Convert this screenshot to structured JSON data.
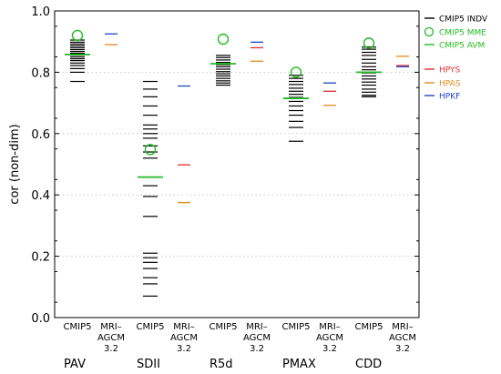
{
  "chart_data": {
    "type": "scatter",
    "ylabel": "cor (non-dim)",
    "ylim": [
      0.0,
      1.0
    ],
    "yticks": [
      "0.0",
      "0.2",
      "0.4",
      "0.6",
      "0.8",
      "1.0"
    ],
    "ytick_values": [
      0.0,
      0.2,
      0.4,
      0.6,
      0.8,
      1.0
    ],
    "grid": "dotted horizontal",
    "legend": "top-right",
    "groups": [
      {
        "name": "PAV",
        "cmip5_label": "CMIP5",
        "mri_label": [
          "MRI–",
          "AGCM",
          "3.2"
        ],
        "cmip5_indv": [
          0.905,
          0.898,
          0.892,
          0.886,
          0.88,
          0.874,
          0.868,
          0.862,
          0.856,
          0.85,
          0.844,
          0.838,
          0.83,
          0.822,
          0.812,
          0.8,
          0.77
        ],
        "mme": 0.92,
        "avm": 0.858,
        "hpys": null,
        "hpas": 0.89,
        "hpkf": 0.925
      },
      {
        "name": "SDII",
        "cmip5_label": "CMIP5",
        "mri_label": [
          "MRI–",
          "AGCM",
          "3.2"
        ],
        "cmip5_indv": [
          0.77,
          0.745,
          0.72,
          0.69,
          0.66,
          0.628,
          0.615,
          0.6,
          0.585,
          0.56,
          0.54,
          0.52,
          0.43,
          0.395,
          0.33,
          0.21,
          0.195,
          0.18,
          0.16,
          0.13,
          0.11,
          0.07
        ],
        "mme": 0.548,
        "avm": 0.458,
        "hpys": 0.498,
        "hpas": 0.375,
        "hpkf": 0.755
      },
      {
        "name": "R5d",
        "cmip5_label": "CMIP5",
        "mri_label": [
          "MRI–",
          "AGCM",
          "3.2"
        ],
        "cmip5_indv": [
          0.855,
          0.848,
          0.84,
          0.832,
          0.825,
          0.818,
          0.81,
          0.802,
          0.795,
          0.788,
          0.78,
          0.772,
          0.765,
          0.758
        ],
        "mme": 0.908,
        "avm": 0.828,
        "hpys": 0.88,
        "hpas": 0.836,
        "hpkf": 0.898
      },
      {
        "name": "PMAX",
        "cmip5_label": "CMIP5",
        "mri_label": [
          "MRI–",
          "AGCM",
          "3.2"
        ],
        "cmip5_indv": [
          0.79,
          0.78,
          0.77,
          0.76,
          0.748,
          0.738,
          0.728,
          0.718,
          0.705,
          0.69,
          0.675,
          0.66,
          0.64,
          0.62,
          0.575
        ],
        "mme": 0.8,
        "avm": 0.715,
        "hpys": 0.738,
        "hpas": 0.692,
        "hpkf": 0.765
      },
      {
        "name": "CDD",
        "cmip5_label": "CMIP5",
        "mri_label": [
          "MRI–",
          "AGCM",
          "3.2"
        ],
        "cmip5_indv": [
          0.882,
          0.875,
          0.865,
          0.855,
          0.842,
          0.83,
          0.818,
          0.808,
          0.798,
          0.788,
          0.778,
          0.768,
          0.758,
          0.745,
          0.735,
          0.725,
          0.72
        ],
        "mme": 0.895,
        "avm": 0.8,
        "hpys": 0.822,
        "hpas": 0.852,
        "hpkf": 0.818
      }
    ],
    "legend_entries": [
      {
        "key": "indv",
        "label": "CMIP5 INDV",
        "color": "#000000",
        "marker": "line"
      },
      {
        "key": "mme",
        "label": "CMIP5 MME",
        "color": "#22bb22",
        "marker": "circle"
      },
      {
        "key": "avm",
        "label": "CMIP5 AVM",
        "color": "#22bb22",
        "marker": "line"
      },
      {
        "key": "hpys",
        "label": "HPYS",
        "color": "#e03030",
        "marker": "line"
      },
      {
        "key": "hpas",
        "label": "HPAS",
        "color": "#e08a1e",
        "marker": "line"
      },
      {
        "key": "hpkf",
        "label": "HPKF",
        "color": "#2040c8",
        "marker": "line"
      }
    ]
  }
}
